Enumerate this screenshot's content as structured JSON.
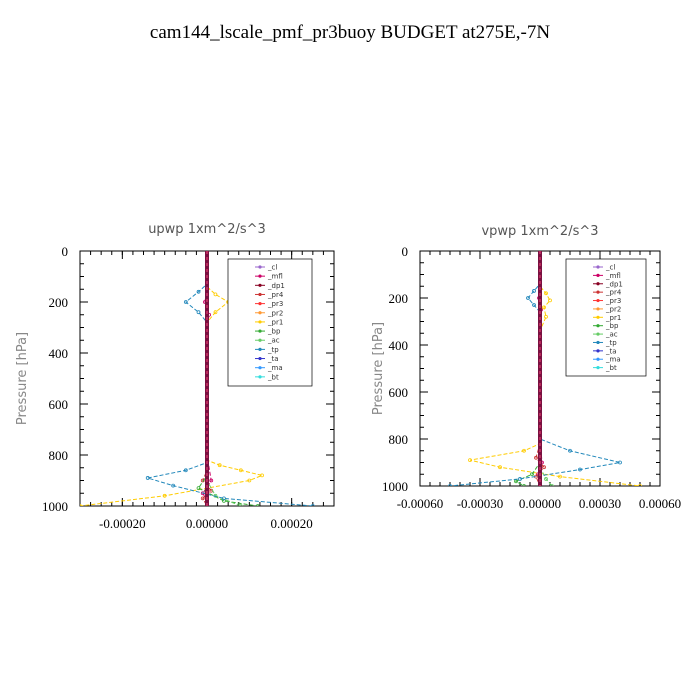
{
  "page_title": "cam144_lscale_pmf_pr3buoy  BUDGET at275E,-7N",
  "chart_data": [
    {
      "type": "line",
      "title": "upwp   1xm^2/s^3",
      "ylabel": "Pressure [hPa]",
      "xlim": [
        -0.0003,
        0.0003
      ],
      "ylim": [
        1000,
        0
      ],
      "x_ticks": [
        -0.0002,
        0.0,
        0.0002
      ],
      "x_tick_labels": [
        "-0.00020",
        "0.00000",
        "0.00020"
      ],
      "y_ticks": [
        0,
        200,
        400,
        600,
        800,
        1000
      ],
      "y_tick_labels": [
        "0",
        "200",
        "400",
        "600",
        "800",
        "1000"
      ],
      "legend_position": "top-right",
      "series": [
        {
          "name": "_cl",
          "color": "#9966cc",
          "x": [
            0,
            0
          ],
          "y": [
            0,
            1000
          ]
        },
        {
          "name": "_mfl",
          "color": "#cc0066",
          "x": [
            0,
            0,
            -5e-06,
            5e-06,
            0,
            0,
            1e-05,
            -1e-05,
            0,
            0
          ],
          "y": [
            0,
            150,
            200,
            250,
            300,
            800,
            900,
            950,
            980,
            1000
          ]
        },
        {
          "name": "_dp1",
          "color": "#880022",
          "x": [
            0,
            0
          ],
          "y": [
            0,
            1000
          ]
        },
        {
          "name": "_pr4",
          "color": "#cc3333",
          "x": [
            0,
            0,
            0,
            -1e-05,
            1e-05,
            -1e-05,
            0
          ],
          "y": [
            0,
            800,
            860,
            900,
            940,
            970,
            1000
          ]
        },
        {
          "name": "_pr3",
          "color": "#ff3333",
          "x": [
            0,
            0
          ],
          "y": [
            0,
            1000
          ]
        },
        {
          "name": "_pr2",
          "color": "#ff9933",
          "x": [
            0,
            0
          ],
          "y": [
            0,
            1000
          ]
        },
        {
          "name": "_pr1",
          "color": "#ffcc00",
          "x": [
            0,
            0,
            2e-05,
            5e-05,
            2e-05,
            0,
            0,
            3e-05,
            8e-05,
            0.00013,
            0.0001,
            -0.0001,
            -0.0003
          ],
          "y": [
            0,
            140,
            170,
            200,
            240,
            280,
            820,
            840,
            860,
            880,
            900,
            960,
            1000
          ]
        },
        {
          "name": "_bp",
          "color": "#33aa33",
          "x": [
            0,
            0,
            -2e-05,
            4e-05,
            0.00012
          ],
          "y": [
            0,
            880,
            930,
            980,
            1000
          ]
        },
        {
          "name": "_ac",
          "color": "#66cc66",
          "x": [
            0,
            0,
            2e-05,
            8e-05
          ],
          "y": [
            0,
            900,
            960,
            1000
          ]
        },
        {
          "name": "_tp",
          "color": "#2288bb",
          "x": [
            0,
            0,
            -2e-05,
            -5e-05,
            -2e-05,
            0,
            0,
            -5e-05,
            -0.00014,
            -8e-05,
            4e-05,
            0.00025
          ],
          "y": [
            0,
            130,
            160,
            200,
            240,
            280,
            830,
            860,
            890,
            920,
            970,
            1000
          ]
        },
        {
          "name": "_ta",
          "color": "#3333cc",
          "x": [
            0,
            0
          ],
          "y": [
            0,
            1000
          ]
        },
        {
          "name": "_ma",
          "color": "#3399ff",
          "x": [
            0,
            0
          ],
          "y": [
            0,
            1000
          ]
        },
        {
          "name": "_bt",
          "color": "#33dddd",
          "x": [
            0,
            0
          ],
          "y": [
            0,
            1000
          ]
        }
      ]
    },
    {
      "type": "line",
      "title": "vpwp   1xm^2/s^3",
      "ylabel": "Pressure [hPa]",
      "xlim": [
        -0.0006,
        0.0006
      ],
      "ylim": [
        1000,
        0
      ],
      "x_ticks": [
        -0.0006,
        -0.0003,
        0.0,
        0.0003,
        0.0006
      ],
      "x_tick_labels": [
        "-0.00060",
        "-0.00030",
        "0.00000",
        "0.00030",
        "0.00060"
      ],
      "y_ticks": [
        0,
        200,
        400,
        600,
        800,
        1000
      ],
      "y_tick_labels": [
        "0",
        "200",
        "400",
        "600",
        "800",
        "1000"
      ],
      "legend_position": "top-right",
      "series": [
        {
          "name": "_cl",
          "color": "#9966cc",
          "x": [
            0,
            0
          ],
          "y": [
            0,
            1000
          ]
        },
        {
          "name": "_mfl",
          "color": "#cc0066",
          "x": [
            0,
            0,
            -5e-06,
            5e-06,
            0,
            0,
            1e-05,
            -1e-05,
            0
          ],
          "y": [
            0,
            150,
            200,
            250,
            300,
            800,
            900,
            950,
            1000
          ]
        },
        {
          "name": "_dp1",
          "color": "#880022",
          "x": [
            0,
            0
          ],
          "y": [
            0,
            1000
          ]
        },
        {
          "name": "_pr4",
          "color": "#cc3333",
          "x": [
            0,
            0,
            -2e-05,
            2e-05,
            -2e-05,
            0
          ],
          "y": [
            0,
            820,
            880,
            920,
            960,
            1000
          ]
        },
        {
          "name": "_pr3",
          "color": "#ff3333",
          "x": [
            0,
            0
          ],
          "y": [
            0,
            1000
          ]
        },
        {
          "name": "_pr2",
          "color": "#ff9933",
          "x": [
            0,
            0
          ],
          "y": [
            0,
            1000
          ]
        },
        {
          "name": "_pr1",
          "color": "#ffcc00",
          "x": [
            0,
            0,
            3e-05,
            5e-05,
            2e-05,
            3e-05,
            0,
            0,
            -8e-05,
            -0.00035,
            -0.0002,
            0.0001,
            0.0005
          ],
          "y": [
            0,
            150,
            180,
            210,
            240,
            280,
            340,
            820,
            850,
            890,
            920,
            960,
            1000
          ]
        },
        {
          "name": "_bp",
          "color": "#33aa33",
          "x": [
            0,
            0,
            -4e-05,
            -0.00012,
            -8e-05
          ],
          "y": [
            0,
            900,
            950,
            980,
            1000
          ]
        },
        {
          "name": "_ac",
          "color": "#66cc66",
          "x": [
            0,
            0,
            3e-05,
            6e-05
          ],
          "y": [
            0,
            920,
            970,
            1000
          ]
        },
        {
          "name": "_tp",
          "color": "#2288bb",
          "x": [
            0,
            0,
            -3e-05,
            -6e-05,
            -3e-05,
            0,
            0,
            0.00015,
            0.0004,
            0.0002,
            -0.0001,
            -0.00045
          ],
          "y": [
            0,
            140,
            170,
            200,
            230,
            260,
            800,
            850,
            900,
            930,
            970,
            1000
          ]
        },
        {
          "name": "_ta",
          "color": "#3333cc",
          "x": [
            0,
            0
          ],
          "y": [
            0,
            1000
          ]
        },
        {
          "name": "_ma",
          "color": "#3399ff",
          "x": [
            0,
            0
          ],
          "y": [
            0,
            1000
          ]
        },
        {
          "name": "_bt",
          "color": "#33dddd",
          "x": [
            0,
            0
          ],
          "y": [
            0,
            1000
          ]
        }
      ]
    }
  ]
}
